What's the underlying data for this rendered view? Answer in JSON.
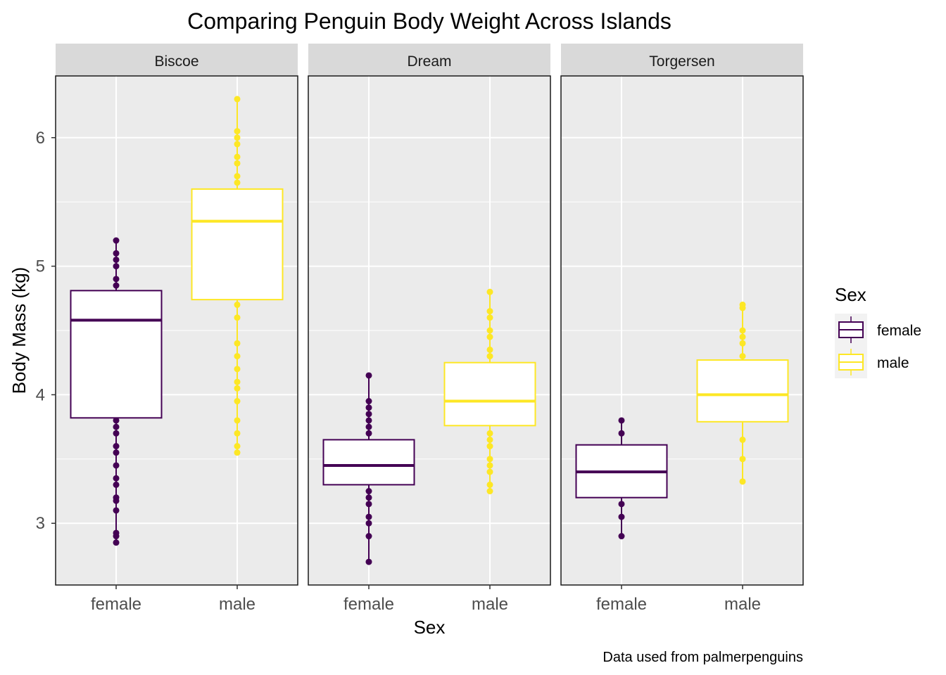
{
  "chart_data": {
    "type": "box",
    "title": "Comparing Penguin Body Weight Across Islands",
    "xlabel": "Sex",
    "ylabel": "Body Mass (kg)",
    "caption": "Data used from palmerpenguins",
    "ylim": [
      2.52,
      6.48
    ],
    "y_ticks": [
      3,
      4,
      5,
      6
    ],
    "categories": [
      "female",
      "male"
    ],
    "legend": {
      "title": "Sex",
      "position": "right",
      "entries": [
        {
          "label": "female",
          "color": "#440154"
        },
        {
          "label": "male",
          "color": "#FDE725"
        }
      ]
    },
    "facets": [
      {
        "name": "Biscoe",
        "boxes": [
          {
            "category": "female",
            "q1": 3.82,
            "median": 4.58,
            "q3": 4.81,
            "points": [
              2.85,
              2.9,
              2.925,
              3.1,
              3.175,
              3.2,
              3.3,
              3.35,
              3.45,
              3.55,
              3.6,
              3.7,
              3.75,
              3.8,
              4.85,
              4.9,
              5.0,
              5.05,
              5.1,
              5.2
            ]
          },
          {
            "category": "male",
            "q1": 4.74,
            "median": 5.35,
            "q3": 5.6,
            "points": [
              3.55,
              3.6,
              3.7,
              3.8,
              3.95,
              4.05,
              4.1,
              4.2,
              4.3,
              4.4,
              4.6,
              4.7,
              5.65,
              5.7,
              5.8,
              5.85,
              5.95,
              6.0,
              6.05,
              6.3
            ]
          }
        ]
      },
      {
        "name": "Dream",
        "boxes": [
          {
            "category": "female",
            "q1": 3.3,
            "median": 3.45,
            "q3": 3.65,
            "points": [
              2.7,
              2.9,
              3.0,
              3.05,
              3.15,
              3.2,
              3.25,
              3.7,
              3.75,
              3.8,
              3.85,
              3.9,
              3.95,
              4.15
            ]
          },
          {
            "category": "male",
            "q1": 3.76,
            "median": 3.95,
            "q3": 4.25,
            "points": [
              3.25,
              3.3,
              3.4,
              3.45,
              3.5,
              3.6,
              3.65,
              3.7,
              4.3,
              4.35,
              4.45,
              4.5,
              4.6,
              4.65,
              4.8
            ]
          }
        ]
      },
      {
        "name": "Torgersen",
        "boxes": [
          {
            "category": "female",
            "q1": 3.2,
            "median": 3.4,
            "q3": 3.61,
            "points": [
              2.9,
              3.05,
              3.15,
              3.7,
              3.8
            ]
          },
          {
            "category": "male",
            "q1": 3.79,
            "median": 4.0,
            "q3": 4.27,
            "points": [
              3.325,
              3.5,
              3.65,
              4.3,
              4.4,
              4.45,
              4.5,
              4.675,
              4.7
            ]
          }
        ]
      }
    ]
  }
}
